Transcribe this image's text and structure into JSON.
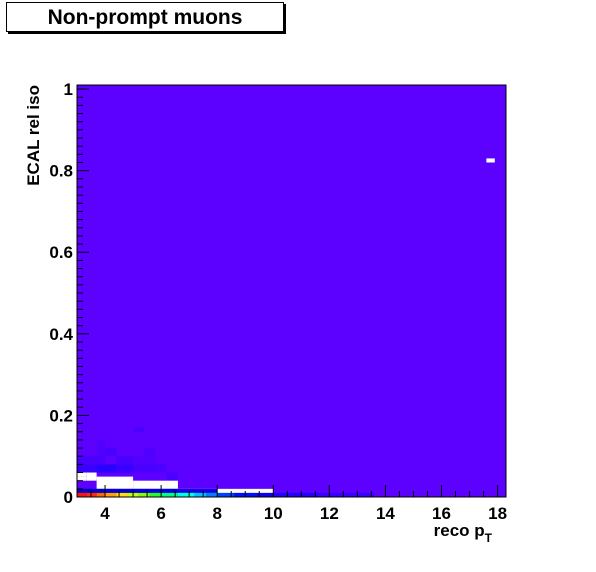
{
  "header": {
    "title": "Non-prompt muons"
  },
  "chart_data": {
    "type": "heatmap",
    "title": "Non-prompt muons",
    "xlabel_main": "reco p",
    "xlabel_sub": "T",
    "ylabel": "ECAL rel iso",
    "xlim": [
      3,
      18.3
    ],
    "ylim": [
      0,
      1.01
    ],
    "x_ticks": [
      4,
      6,
      8,
      10,
      12,
      14,
      16,
      18
    ],
    "y_ticks": [
      0,
      0.2,
      0.4,
      0.6,
      0.8,
      1
    ],
    "y_tick_labels": [
      "0",
      "0.2",
      "0.4",
      "0.6",
      "0.8",
      "1"
    ],
    "background_color": "#5c00ff",
    "colors": {
      "low_bin": "#5c00ff",
      "mid_low_bin": "#3a00ff",
      "dark_blue": "#1400d8",
      "empty_bin": "#ffffff"
    },
    "cells": [
      {
        "x0": 3.0,
        "x1": 18.3,
        "y0": 0.0,
        "y1": 1.01,
        "color": "#5c00ff"
      },
      {
        "x0": 3.0,
        "x1": 3.35,
        "y0": 0.08,
        "y1": 0.1,
        "color": "#4a00ff"
      },
      {
        "x0": 3.0,
        "x1": 3.7,
        "y0": 0.06,
        "y1": 0.08,
        "color": "#3a00ff"
      },
      {
        "x0": 3.35,
        "x1": 4.0,
        "y0": 0.08,
        "y1": 0.1,
        "color": "#4a00ff"
      },
      {
        "x0": 3.7,
        "x1": 4.4,
        "y0": 0.06,
        "y1": 0.08,
        "color": "#2a00ff"
      },
      {
        "x0": 4.4,
        "x1": 5.0,
        "y0": 0.06,
        "y1": 0.08,
        "color": "#3a00ff"
      },
      {
        "x0": 5.0,
        "x1": 5.8,
        "y0": 0.06,
        "y1": 0.08,
        "color": "#4a00ff"
      },
      {
        "x0": 3.7,
        "x1": 4.0,
        "y0": 0.1,
        "y1": 0.14,
        "color": "#5000ff"
      },
      {
        "x0": 4.0,
        "x1": 4.4,
        "y0": 0.1,
        "y1": 0.12,
        "color": "#4a00ff"
      },
      {
        "x0": 4.4,
        "x1": 5.0,
        "y0": 0.08,
        "y1": 0.1,
        "color": "#4800ff"
      },
      {
        "x0": 5.0,
        "x1": 5.8,
        "y0": 0.08,
        "y1": 0.1,
        "color": "#5200ff"
      },
      {
        "x0": 5.0,
        "x1": 5.4,
        "y0": 0.16,
        "y1": 0.17,
        "color": "#4a00ff"
      },
      {
        "x0": 5.4,
        "x1": 5.8,
        "y0": 0.1,
        "y1": 0.12,
        "color": "#5000ff"
      },
      {
        "x0": 5.8,
        "x1": 6.2,
        "y0": 0.06,
        "y1": 0.08,
        "color": "#4c00ff"
      },
      {
        "x0": 6.2,
        "x1": 6.6,
        "y0": 0.04,
        "y1": 0.06,
        "color": "#4c00ff"
      },
      {
        "x0": 3.0,
        "x1": 3.35,
        "y0": 0.04,
        "y1": 0.05,
        "color": "#ffffff"
      },
      {
        "x0": 3.0,
        "x1": 3.35,
        "y0": 0.05,
        "y1": 0.06,
        "color": "#ffffff"
      },
      {
        "x0": 3.35,
        "x1": 3.7,
        "y0": 0.04,
        "y1": 0.06,
        "color": "#ffffff"
      },
      {
        "x0": 3.7,
        "x1": 5.0,
        "y0": 0.02,
        "y1": 0.05,
        "color": "#ffffff"
      },
      {
        "x0": 5.0,
        "x1": 6.6,
        "y0": 0.02,
        "y1": 0.04,
        "color": "#ffffff"
      },
      {
        "x0": 6.6,
        "x1": 10.0,
        "y0": 0.01,
        "y1": 0.02,
        "color": "#ffffff"
      },
      {
        "x0": 3.0,
        "x1": 3.35,
        "y0": 0.01,
        "y1": 0.02,
        "color": "#0000c0"
      },
      {
        "x0": 3.35,
        "x1": 4.0,
        "y0": 0.01,
        "y1": 0.02,
        "color": "#0000c0"
      },
      {
        "x0": 4.0,
        "x1": 5.0,
        "y0": 0.01,
        "y1": 0.02,
        "color": "#0000d0"
      },
      {
        "x0": 5.0,
        "x1": 6.6,
        "y0": 0.01,
        "y1": 0.02,
        "color": "#0000d8"
      },
      {
        "x0": 6.6,
        "x1": 8.0,
        "y0": 0.01,
        "y1": 0.02,
        "color": "#1400e0"
      },
      {
        "x0": 3.0,
        "x1": 3.35,
        "y0": 0.0,
        "y1": 0.01,
        "color": "#ff1010"
      },
      {
        "x0": 3.35,
        "x1": 3.7,
        "y0": 0.0,
        "y1": 0.01,
        "color": "#ff2a00"
      },
      {
        "x0": 3.7,
        "x1": 4.0,
        "y0": 0.0,
        "y1": 0.01,
        "color": "#ff6600"
      },
      {
        "x0": 4.0,
        "x1": 4.4,
        "y0": 0.0,
        "y1": 0.01,
        "color": "#ffa000"
      },
      {
        "x0": 4.4,
        "x1": 4.8,
        "y0": 0.0,
        "y1": 0.01,
        "color": "#ffe000"
      },
      {
        "x0": 4.8,
        "x1": 5.2,
        "y0": 0.0,
        "y1": 0.01,
        "color": "#c0ff00"
      },
      {
        "x0": 5.2,
        "x1": 5.6,
        "y0": 0.0,
        "y1": 0.01,
        "color": "#80ff00"
      },
      {
        "x0": 5.6,
        "x1": 6.0,
        "y0": 0.0,
        "y1": 0.01,
        "color": "#20ff20"
      },
      {
        "x0": 6.0,
        "x1": 6.6,
        "y0": 0.0,
        "y1": 0.01,
        "color": "#00ff80"
      },
      {
        "x0": 6.6,
        "x1": 7.2,
        "y0": 0.0,
        "y1": 0.01,
        "color": "#00ffe0"
      },
      {
        "x0": 7.2,
        "x1": 7.6,
        "y0": 0.0,
        "y1": 0.01,
        "color": "#00c0ff"
      },
      {
        "x0": 7.6,
        "x1": 8.0,
        "y0": 0.0,
        "y1": 0.01,
        "color": "#0080ff"
      },
      {
        "x0": 8.0,
        "x1": 8.6,
        "y0": 0.0,
        "y1": 0.01,
        "color": "#0040ff"
      },
      {
        "x0": 8.6,
        "x1": 9.4,
        "y0": 0.0,
        "y1": 0.01,
        "color": "#0010ff"
      },
      {
        "x0": 9.4,
        "x1": 10.0,
        "y0": 0.0,
        "y1": 0.01,
        "color": "#1000f0"
      },
      {
        "x0": 10.0,
        "x1": 11.6,
        "y0": 0.0,
        "y1": 0.01,
        "color": "#2000ff"
      },
      {
        "x0": 11.6,
        "x1": 13.6,
        "y0": 0.0,
        "y1": 0.01,
        "color": "#3a00ff"
      },
      {
        "x0": 17.6,
        "x1": 17.9,
        "y0": 0.82,
        "y1": 0.83,
        "color": "#ffffff"
      }
    ]
  }
}
